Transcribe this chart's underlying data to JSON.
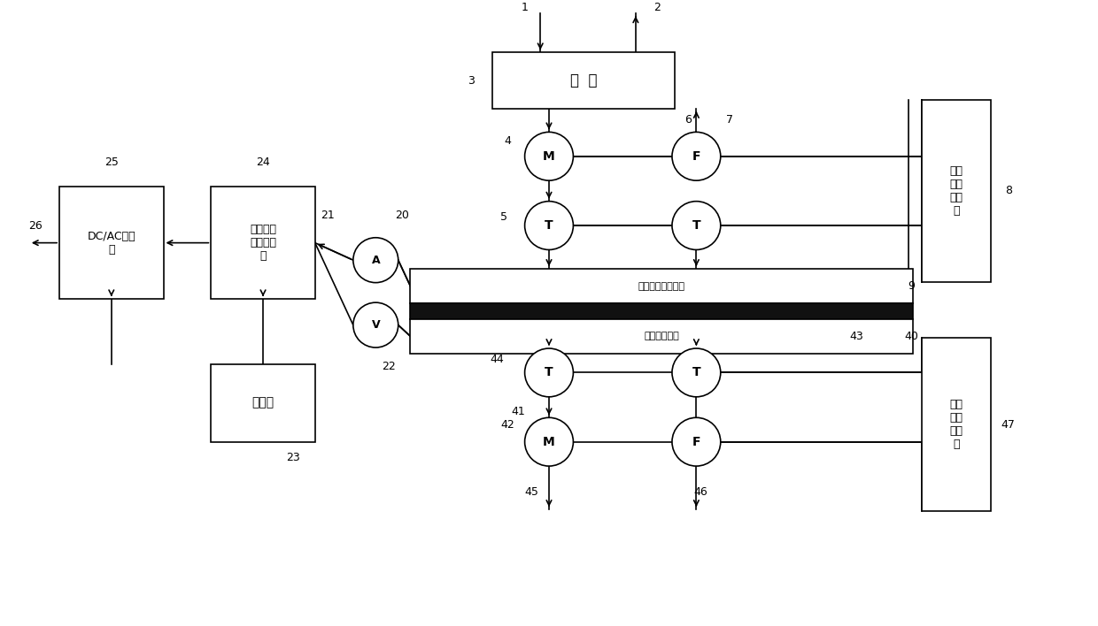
{
  "bg_color": "#ffffff",
  "lc": "#000000",
  "lw": 1.2,
  "figsize": [
    12.4,
    7.08
  ],
  "dpi": 100,
  "labels": {
    "oil_tank": "油  箱",
    "pump_ctrl": "油泵\n节能\n控制\n器",
    "water_ctrl": "水泵\n节能\n控制\n器",
    "mppt": "最大功率\n跟踪控制\n器",
    "dcac": "DC/AC变换\n器",
    "battery": "蓄电池",
    "hot_plate": "高温导热油换热板",
    "cold_plate": "低温水换热板"
  }
}
